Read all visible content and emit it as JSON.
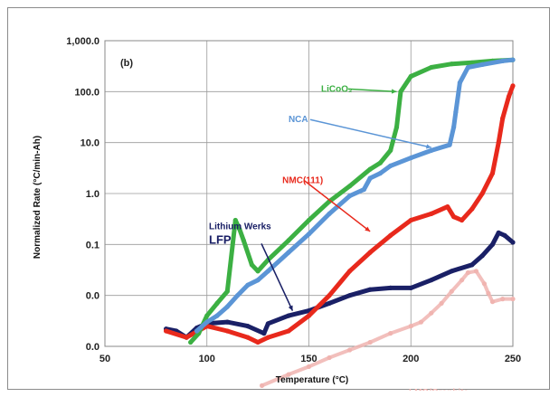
{
  "chart_data": {
    "type": "line",
    "panel_label": "(b)",
    "xlabel": "Temperature (°C)",
    "ylabel": "Normalized Rate (°C/min-Ah)",
    "xlim": [
      50,
      250
    ],
    "ylim": [
      0.0,
      1000.0
    ],
    "x_ticks": [
      "50",
      "100",
      "150",
      "200",
      "250"
    ],
    "y_ticks": [
      "0.0",
      "0.0",
      "0.1",
      "1.0",
      "10.0",
      "100.0",
      "1,000.0"
    ],
    "y_scale": "log",
    "grid": true,
    "colors": {
      "LiCoO2": "#3cb043",
      "NCA": "#5b95d6",
      "NMC(111)": "#e8291c",
      "LFP": "#1a2066",
      "LMO": "#f0b4b0"
    },
    "series": [
      {
        "name": "LiCoO2",
        "points": [
          [
            92,
            0.0012
          ],
          [
            96,
            0.0018
          ],
          [
            100,
            0.004
          ],
          [
            105,
            0.007
          ],
          [
            110,
            0.012
          ],
          [
            114,
            0.3
          ],
          [
            116,
            0.2
          ],
          [
            118,
            0.12
          ],
          [
            122,
            0.04
          ],
          [
            125,
            0.03
          ],
          [
            130,
            0.05
          ],
          [
            140,
            0.12
          ],
          [
            150,
            0.3
          ],
          [
            160,
            0.7
          ],
          [
            170,
            1.4
          ],
          [
            180,
            3
          ],
          [
            185,
            4
          ],
          [
            190,
            7
          ],
          [
            193,
            20
          ],
          [
            195,
            100
          ],
          [
            200,
            200
          ],
          [
            210,
            300
          ],
          [
            220,
            350
          ],
          [
            230,
            370
          ],
          [
            240,
            400
          ],
          [
            250,
            420
          ]
        ]
      },
      {
        "name": "NCA",
        "points": [
          [
            95,
            0.002
          ],
          [
            100,
            0.003
          ],
          [
            105,
            0.004
          ],
          [
            110,
            0.006
          ],
          [
            115,
            0.01
          ],
          [
            120,
            0.016
          ],
          [
            125,
            0.02
          ],
          [
            130,
            0.03
          ],
          [
            140,
            0.07
          ],
          [
            150,
            0.16
          ],
          [
            160,
            0.4
          ],
          [
            170,
            0.9
          ],
          [
            177,
            1.2
          ],
          [
            180,
            2
          ],
          [
            185,
            2.5
          ],
          [
            190,
            3.5
          ],
          [
            200,
            5
          ],
          [
            210,
            7
          ],
          [
            219,
            9
          ],
          [
            221,
            20
          ],
          [
            222,
            40
          ],
          [
            224,
            150
          ],
          [
            228,
            300
          ],
          [
            235,
            340
          ],
          [
            245,
            400
          ],
          [
            250,
            420
          ]
        ]
      },
      {
        "name": "NMC(111)",
        "points": [
          [
            80,
            0.002
          ],
          [
            90,
            0.0015
          ],
          [
            100,
            0.0025
          ],
          [
            110,
            0.002
          ],
          [
            120,
            0.0015
          ],
          [
            125,
            0.0012
          ],
          [
            130,
            0.0015
          ],
          [
            140,
            0.002
          ],
          [
            150,
            0.004
          ],
          [
            160,
            0.01
          ],
          [
            170,
            0.03
          ],
          [
            180,
            0.07
          ],
          [
            190,
            0.15
          ],
          [
            200,
            0.3
          ],
          [
            210,
            0.4
          ],
          [
            218,
            0.55
          ],
          [
            221,
            0.35
          ],
          [
            225,
            0.3
          ],
          [
            230,
            0.5
          ],
          [
            235,
            1
          ],
          [
            240,
            2.5
          ],
          [
            243,
            10
          ],
          [
            245,
            30
          ],
          [
            248,
            80
          ],
          [
            250,
            130
          ]
        ]
      },
      {
        "name": "Lithium Werks LFP",
        "points": [
          [
            80,
            0.0022
          ],
          [
            85,
            0.002
          ],
          [
            90,
            0.0015
          ],
          [
            95,
            0.0023
          ],
          [
            100,
            0.0028
          ],
          [
            110,
            0.003
          ],
          [
            120,
            0.0025
          ],
          [
            128,
            0.0018
          ],
          [
            130,
            0.0028
          ],
          [
            140,
            0.004
          ],
          [
            150,
            0.005
          ],
          [
            160,
            0.007
          ],
          [
            170,
            0.01
          ],
          [
            180,
            0.013
          ],
          [
            190,
            0.014
          ],
          [
            200,
            0.014
          ],
          [
            210,
            0.02
          ],
          [
            220,
            0.03
          ],
          [
            230,
            0.04
          ],
          [
            235,
            0.06
          ],
          [
            240,
            0.1
          ],
          [
            243,
            0.17
          ],
          [
            246,
            0.15
          ],
          [
            250,
            0.11
          ]
        ]
      },
      {
        "name": "LMO/Graphite",
        "points": [
          [
            127,
            0.00017
          ],
          [
            140,
            0.00028
          ],
          [
            150,
            0.0004
          ],
          [
            160,
            0.0006
          ],
          [
            170,
            0.00085
          ],
          [
            180,
            0.0012
          ],
          [
            190,
            0.0018
          ],
          [
            200,
            0.0025
          ],
          [
            205,
            0.003
          ],
          [
            210,
            0.0045
          ],
          [
            215,
            0.007
          ],
          [
            220,
            0.012
          ],
          [
            225,
            0.02
          ],
          [
            228,
            0.028
          ],
          [
            232,
            0.03
          ],
          [
            236,
            0.017
          ],
          [
            238,
            0.011
          ],
          [
            240,
            0.0075
          ],
          [
            245,
            0.0085
          ],
          [
            250,
            0.0085
          ]
        ]
      }
    ],
    "annotations": [
      {
        "text": "LiCoO₂",
        "series": "LiCoO2",
        "color": "#3cb043",
        "text_xy": [
          156,
          100
        ],
        "arrow_to": [
          193,
          100
        ]
      },
      {
        "text": "NCA",
        "series": "NCA",
        "color": "#5b95d6",
        "text_xy": [
          140,
          25
        ],
        "arrow_to": [
          210,
          8
        ]
      },
      {
        "text": "NMC(111)",
        "series": "NMC(111)",
        "color": "#e8291c",
        "text_xy": [
          137,
          1.6
        ],
        "arrow_to": [
          180,
          0.18
        ]
      },
      {
        "text": "Lithium Werks",
        "series": "Lithium Werks LFP",
        "color": "#1a2066",
        "text_xy": [
          101,
          0.2
        ],
        "arrow_to": [
          142,
          0.005
        ],
        "line2": "LFP"
      },
      {
        "text": "LMO/Graphite",
        "series": "LMO/Graphite",
        "color": "#f0b4b0",
        "text_xy": [
          199,
          0.00011
        ],
        "arrow_to": null
      }
    ]
  }
}
